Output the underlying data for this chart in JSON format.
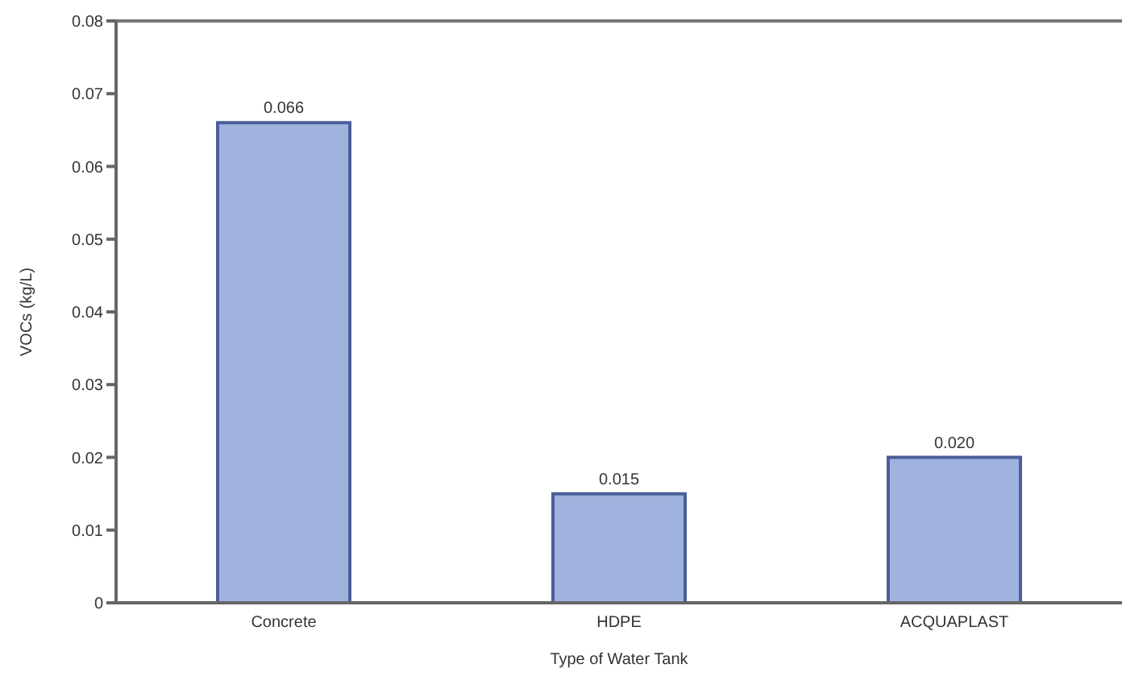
{
  "chart_data": {
    "type": "bar",
    "xlabel": "Type of Water Tank",
    "ylabel": "VOCs (kg/L)",
    "categories": [
      "Concrete",
      "HDPE",
      "ACQUAPLAST"
    ],
    "values": [
      0.066,
      0.015,
      0.02
    ],
    "value_labels": [
      "0.066",
      "0.015",
      "0.020"
    ],
    "color": "#9fb3de",
    "ylim": [
      0,
      0.08
    ],
    "yticks": [
      0,
      0.01,
      0.02,
      0.03,
      0.04,
      0.05,
      0.06,
      0.07,
      0.08
    ],
    "grid": false
  }
}
